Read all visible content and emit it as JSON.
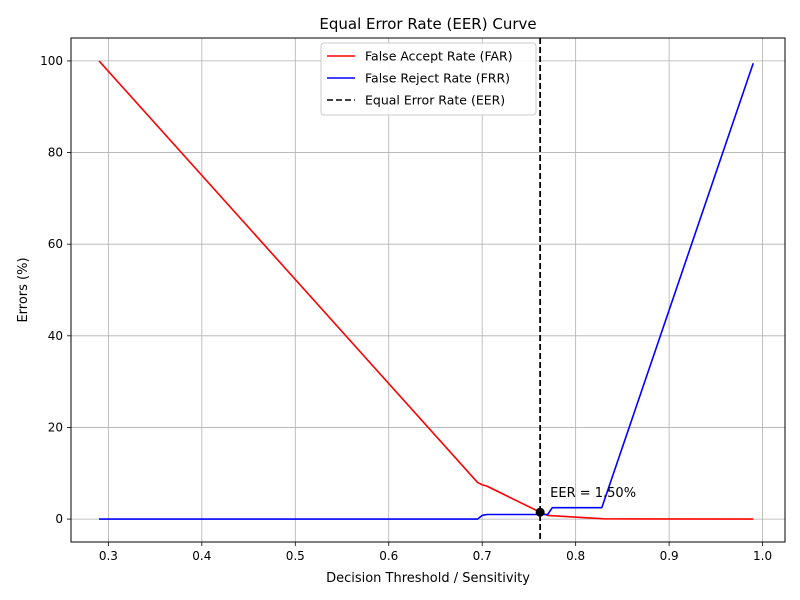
{
  "chart_data": {
    "type": "line",
    "title": "Equal Error Rate (EER) Curve",
    "xlabel": "Decision Threshold / Sensitivity",
    "ylabel": "Errors (%)",
    "xlim": [
      0.26,
      1.024
    ],
    "ylim": [
      -5,
      105
    ],
    "xticks": [
      0.3,
      0.4,
      0.5,
      0.6,
      0.7,
      0.8,
      0.9,
      1.0
    ],
    "xtick_labels": [
      "0.3",
      "0.4",
      "0.5",
      "0.6",
      "0.7",
      "0.8",
      "0.9",
      "1.0"
    ],
    "yticks": [
      0,
      20,
      40,
      60,
      80,
      100
    ],
    "ytick_labels": [
      "0",
      "20",
      "40",
      "60",
      "80",
      "100"
    ],
    "grid": true,
    "legend_position": "top-center",
    "series": [
      {
        "name": "False Accept Rate (FAR)",
        "color": "#ff0000",
        "style": "solid",
        "x": [
          0.29,
          0.695,
          0.7,
          0.705,
          0.762,
          0.77,
          0.83,
          0.99
        ],
        "y": [
          100,
          8.0,
          7.5,
          7.2,
          1.5,
          0.8,
          0.05,
          0
        ]
      },
      {
        "name": "False Reject Rate (FRR)",
        "color": "#0000ff",
        "style": "solid",
        "x": [
          0.29,
          0.695,
          0.7,
          0.705,
          0.762,
          0.77,
          0.775,
          0.828,
          0.99
        ],
        "y": [
          0,
          0,
          0.8,
          1.0,
          1.0,
          1.0,
          2.5,
          2.5,
          99.5
        ]
      },
      {
        "name": "Equal Error Rate (EER)",
        "color": "#000000",
        "style": "dashed",
        "vline_x": 0.762
      }
    ],
    "eer_point": {
      "x": 0.762,
      "y": 1.5
    },
    "annotation": "EER = 1.50%"
  }
}
